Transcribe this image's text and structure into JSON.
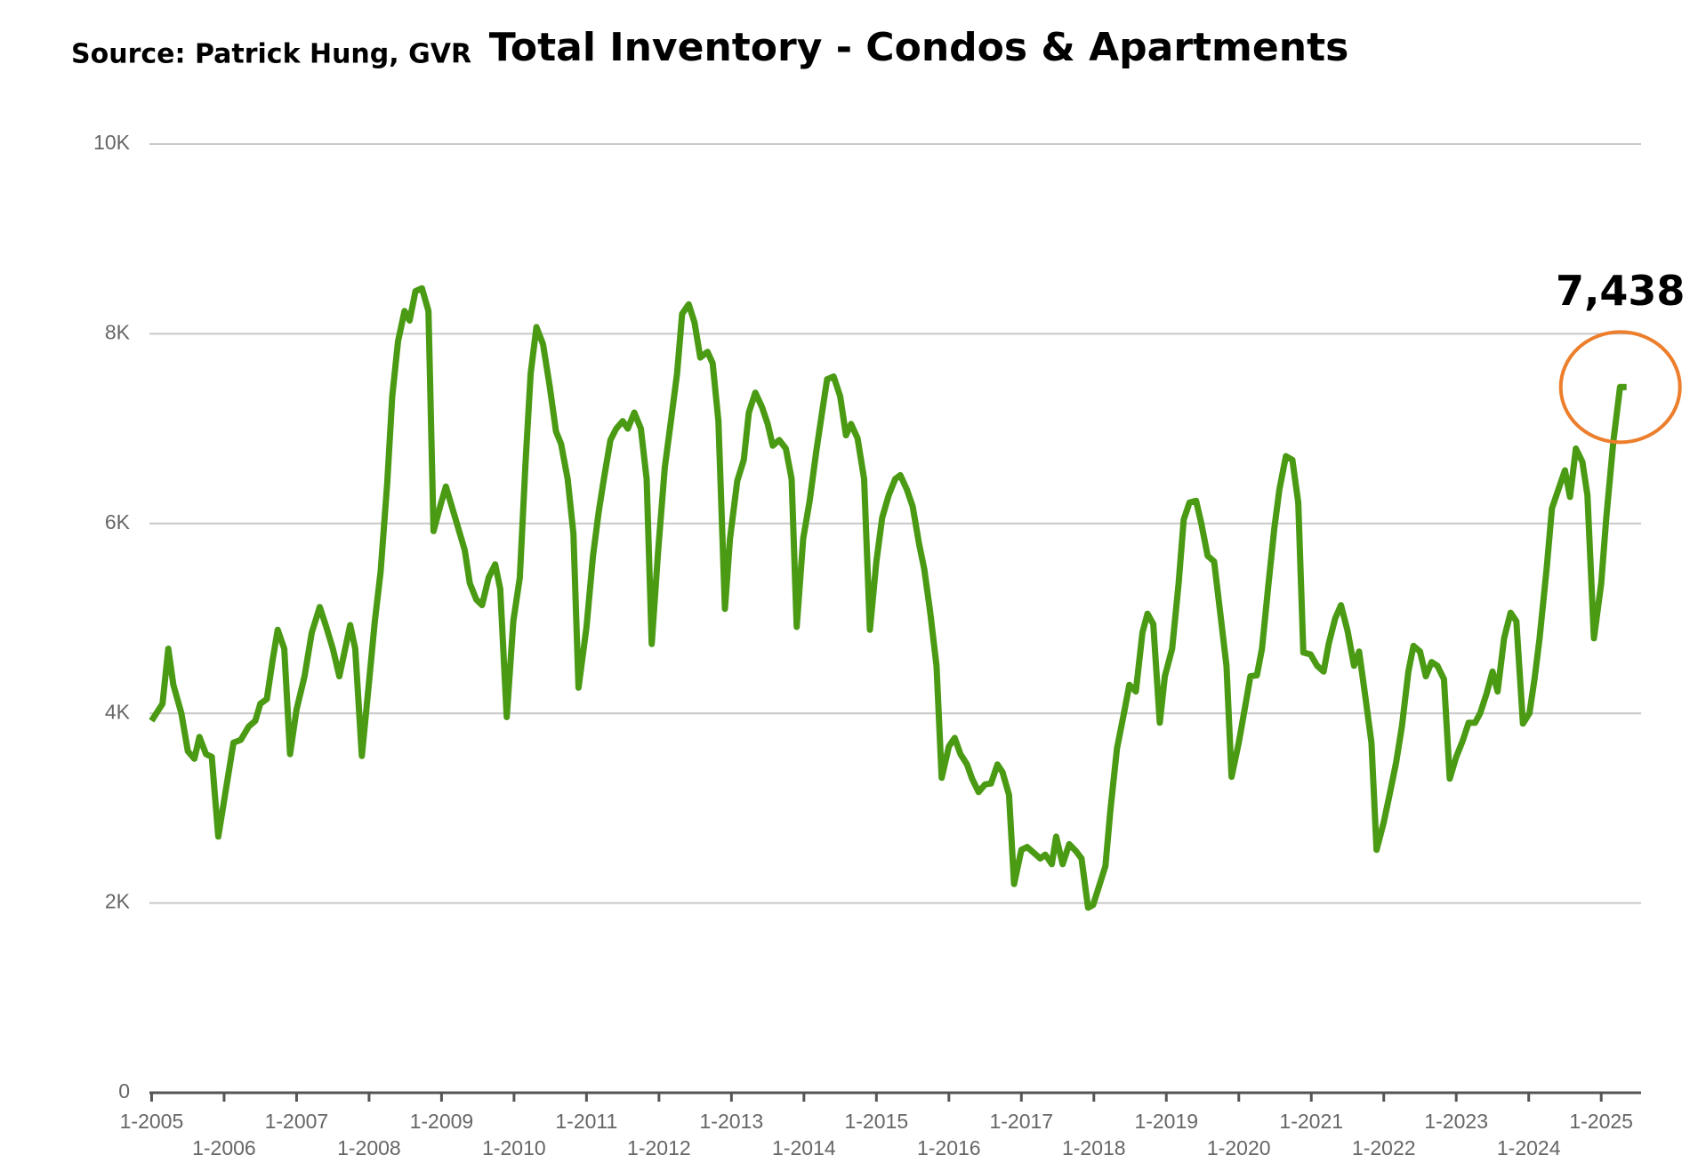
{
  "chart_data": {
    "type": "line",
    "title": "Total Inventory - Condos & Apartments",
    "source": "Source:  Patrick Hung, GVR",
    "annotation": {
      "label": "7,438",
      "value": 7438
    },
    "xlim": [
      2004.97,
      2025.55
    ],
    "ylim": [
      0,
      10000
    ],
    "yticks": [
      {
        "value": 0,
        "label": "0"
      },
      {
        "value": 2000,
        "label": "2K"
      },
      {
        "value": 4000,
        "label": "4K"
      },
      {
        "value": 6000,
        "label": "6K"
      },
      {
        "value": 8000,
        "label": "8K"
      },
      {
        "value": 10000,
        "label": "10K"
      }
    ],
    "xticks": [
      {
        "value": 2005,
        "label": "1-2005"
      },
      {
        "value": 2006,
        "label": "1-2006"
      },
      {
        "value": 2007,
        "label": "1-2007"
      },
      {
        "value": 2008,
        "label": "1-2008"
      },
      {
        "value": 2009,
        "label": "1-2009"
      },
      {
        "value": 2010,
        "label": "1-2010"
      },
      {
        "value": 2011,
        "label": "1-2011"
      },
      {
        "value": 2012,
        "label": "1-2012"
      },
      {
        "value": 2013,
        "label": "1-2013"
      },
      {
        "value": 2014,
        "label": "1-2014"
      },
      {
        "value": 2015,
        "label": "1-2015"
      },
      {
        "value": 2016,
        "label": "1-2016"
      },
      {
        "value": 2017,
        "label": "1-2017"
      },
      {
        "value": 2018,
        "label": "1-2018"
      },
      {
        "value": 2019,
        "label": "1-2019"
      },
      {
        "value": 2020,
        "label": "1-2020"
      },
      {
        "value": 2021,
        "label": "1-2021"
      },
      {
        "value": 2022,
        "label": "1-2022"
      },
      {
        "value": 2023,
        "label": "1-2023"
      },
      {
        "value": 2024,
        "label": "1-2024"
      },
      {
        "value": 2025,
        "label": "1-2025"
      }
    ],
    "grid": true,
    "series": [
      {
        "color": "#4a9a14",
        "x": [
          2005.0,
          2005.15,
          2005.23,
          2005.3,
          2005.41,
          2005.5,
          2005.59,
          2005.66,
          2005.75,
          2005.83,
          2005.92,
          2006.13,
          2006.23,
          2006.34,
          2006.43,
          2006.5,
          2006.59,
          2006.67,
          2006.74,
          2006.83,
          2006.91,
          2007.0,
          2007.11,
          2007.21,
          2007.32,
          2007.41,
          2007.5,
          2007.59,
          2007.74,
          2007.81,
          2007.9,
          2008.0,
          2008.08,
          2008.16,
          2008.25,
          2008.32,
          2008.4,
          2008.49,
          2008.56,
          2008.64,
          2008.73,
          2008.82,
          2008.89,
          2008.98,
          2009.06,
          2009.15,
          2009.32,
          2009.39,
          2009.48,
          2009.56,
          2009.65,
          2009.74,
          2009.81,
          2009.9,
          2009.99,
          2010.08,
          2010.16,
          2010.23,
          2010.31,
          2010.4,
          2010.49,
          2010.58,
          2010.65,
          2010.74,
          2010.82,
          2010.89,
          2011.0,
          2011.09,
          2011.17,
          2011.24,
          2011.33,
          2011.41,
          2011.5,
          2011.57,
          2011.66,
          2011.75,
          2011.83,
          2011.9,
          2011.99,
          2012.08,
          2012.17,
          2012.25,
          2012.32,
          2012.41,
          2012.49,
          2012.57,
          2012.67,
          2012.74,
          2012.82,
          2012.91,
          2012.98,
          2013.08,
          2013.17,
          2013.24,
          2013.33,
          2013.42,
          2013.5,
          2013.57,
          2013.66,
          2013.75,
          2013.83,
          2013.9,
          2013.99,
          2014.08,
          2014.17,
          2014.25,
          2014.32,
          2014.41,
          2014.5,
          2014.58,
          2014.65,
          2014.74,
          2014.83,
          2014.91,
          2015.0,
          2015.08,
          2015.17,
          2015.26,
          2015.33,
          2015.42,
          2015.5,
          2015.59,
          2015.66,
          2015.74,
          2015.83,
          2015.9,
          2016.0,
          2016.08,
          2016.16,
          2016.25,
          2016.32,
          2016.41,
          2016.5,
          2016.58,
          2016.67,
          2016.74,
          2016.83,
          2016.9,
          2017.0,
          2017.08,
          2017.17,
          2017.26,
          2017.33,
          2017.42,
          2017.48,
          2017.57,
          2017.66,
          2017.75,
          2017.83,
          2017.92,
          2017.99,
          2018.16,
          2018.23,
          2018.32,
          2018.41,
          2018.49,
          2018.58,
          2018.67,
          2018.74,
          2018.82,
          2018.91,
          2018.98,
          2019.08,
          2019.17,
          2019.24,
          2019.32,
          2019.41,
          2019.48,
          2019.57,
          2019.66,
          2019.74,
          2019.83,
          2019.9,
          2020.0,
          2020.08,
          2020.16,
          2020.25,
          2020.32,
          2020.41,
          2020.49,
          2020.56,
          2020.65,
          2020.74,
          2020.82,
          2020.89,
          2020.99,
          2021.08,
          2021.17,
          2021.24,
          2021.33,
          2021.41,
          2021.5,
          2021.59,
          2021.66,
          2021.74,
          2021.83,
          2021.9,
          2022.0,
          2022.08,
          2022.17,
          2022.25,
          2022.34,
          2022.41,
          2022.5,
          2022.58,
          2022.66,
          2022.74,
          2022.83,
          2022.91,
          2023.0,
          2023.09,
          2023.17,
          2023.26,
          2023.33,
          2023.42,
          2023.5,
          2023.57,
          2023.66,
          2023.75,
          2023.83,
          2023.92,
          2024.01,
          2024.08,
          2024.15,
          2024.25,
          2024.32,
          2024.41,
          2024.5,
          2024.57,
          2024.65,
          2024.74,
          2024.81,
          2024.9,
          2025.0,
          2025.07,
          2025.17,
          2025.26,
          2025.35
        ],
        "values": [
          3920,
          4100,
          4680,
          4300,
          4000,
          3600,
          3520,
          3750,
          3570,
          3540,
          2700,
          3690,
          3720,
          3860,
          3920,
          4100,
          4150,
          4560,
          4880,
          4680,
          3570,
          4040,
          4390,
          4850,
          5120,
          4910,
          4680,
          4390,
          4930,
          4680,
          3550,
          4330,
          4970,
          5490,
          6420,
          7340,
          7920,
          8240,
          8140,
          8450,
          8480,
          8240,
          5920,
          6180,
          6390,
          6160,
          5720,
          5370,
          5200,
          5140,
          5430,
          5570,
          5310,
          3960,
          4970,
          5430,
          6650,
          7580,
          8070,
          7890,
          7460,
          6970,
          6840,
          6470,
          5890,
          4270,
          4910,
          5660,
          6130,
          6470,
          6880,
          7000,
          7080,
          7000,
          7170,
          7000,
          6470,
          4730,
          5720,
          6590,
          7110,
          7580,
          8210,
          8310,
          8120,
          7750,
          7810,
          7690,
          7080,
          5100,
          5840,
          6450,
          6670,
          7170,
          7380,
          7230,
          7050,
          6820,
          6880,
          6790,
          6470,
          4910,
          5840,
          6240,
          6760,
          7170,
          7520,
          7550,
          7340,
          6930,
          7050,
          6900,
          6470,
          4880,
          5600,
          6060,
          6300,
          6470,
          6510,
          6360,
          6180,
          5780,
          5520,
          5080,
          4500,
          3320,
          3650,
          3740,
          3570,
          3460,
          3310,
          3170,
          3250,
          3260,
          3460,
          3380,
          3140,
          2200,
          2560,
          2590,
          2530,
          2470,
          2510,
          2410,
          2700,
          2410,
          2620,
          2550,
          2470,
          1950,
          1980,
          2390,
          2990,
          3630,
          3980,
          4300,
          4230,
          4850,
          5050,
          4940,
          3900,
          4390,
          4680,
          5370,
          6040,
          6220,
          6240,
          6010,
          5660,
          5600,
          5080,
          4500,
          3330,
          3690,
          4040,
          4390,
          4400,
          4680,
          5370,
          5950,
          6360,
          6710,
          6670,
          6220,
          4640,
          4620,
          4500,
          4440,
          4730,
          5000,
          5140,
          4870,
          4500,
          4650,
          4210,
          3690,
          2560,
          2850,
          3140,
          3480,
          3860,
          4440,
          4710,
          4650,
          4390,
          4540,
          4500,
          4360,
          3310,
          3540,
          3710,
          3900,
          3900,
          4000,
          4210,
          4440,
          4230,
          4790,
          5060,
          4970,
          3890,
          4000,
          4360,
          4790,
          5550,
          6160,
          6360,
          6560,
          6280,
          6790,
          6650,
          6300,
          4790,
          5370,
          6060,
          6880,
          7440,
          7438
        ]
      }
    ]
  }
}
